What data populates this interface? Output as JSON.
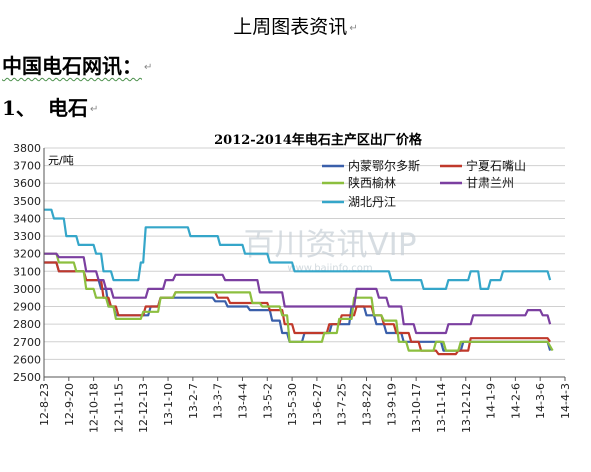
{
  "document": {
    "title": "上周图表资讯",
    "heading": "中国电石网讯：",
    "section_number": "1、",
    "section_title": "电石",
    "paragraph_mark": "↵"
  },
  "chart_data": {
    "type": "line",
    "title": "2012-2014年电石主产区出厂价格",
    "ylabel": "元/吨",
    "xlabel": "",
    "ylim": [
      2500,
      3800
    ],
    "yticks": [
      2500,
      2600,
      2700,
      2800,
      2900,
      3000,
      3100,
      3200,
      3300,
      3400,
      3500,
      3600,
      3700,
      3800
    ],
    "categories": [
      "12-8-23",
      "12-9-20",
      "12-10-18",
      "12-11-15",
      "12-12-13",
      "13-1-10",
      "13-2-7",
      "13-3-7",
      "13-4-4",
      "13-5-2",
      "13-5-30",
      "13-6-27",
      "13-7-25",
      "13-8-22",
      "13-9-19",
      "13-10-17",
      "13-11-14",
      "13-12-12",
      "14-1-9",
      "14-2-6",
      "14-3-6",
      "14-4-3"
    ],
    "grid": true,
    "legend": "top-right",
    "watermark": "百川资讯VIP",
    "watermark_url": "www.baiinfo.com",
    "series": [
      {
        "name": "内蒙鄂尔多斯",
        "color": "#3a5faa",
        "points": [
          [
            0,
            3150
          ],
          [
            0.5,
            3150
          ],
          [
            0.6,
            3100
          ],
          [
            1.6,
            3100
          ],
          [
            1.7,
            3050
          ],
          [
            2.2,
            3050
          ],
          [
            2.3,
            3000
          ],
          [
            2.5,
            3000
          ],
          [
            2.6,
            2900
          ],
          [
            2.8,
            2900
          ],
          [
            2.9,
            2850
          ],
          [
            4.2,
            2850
          ],
          [
            4.3,
            2900
          ],
          [
            4.6,
            2900
          ],
          [
            4.7,
            2950
          ],
          [
            6.8,
            2950
          ],
          [
            6.9,
            2930
          ],
          [
            7.3,
            2930
          ],
          [
            7.4,
            2900
          ],
          [
            8.2,
            2900
          ],
          [
            8.3,
            2880
          ],
          [
            9.1,
            2880
          ],
          [
            9.2,
            2820
          ],
          [
            9.5,
            2820
          ],
          [
            9.6,
            2750
          ],
          [
            9.8,
            2750
          ],
          [
            9.9,
            2700
          ],
          [
            10.4,
            2700
          ],
          [
            10.5,
            2750
          ],
          [
            11.5,
            2750
          ],
          [
            11.6,
            2800
          ],
          [
            12.3,
            2800
          ],
          [
            12.4,
            2900
          ],
          [
            12.9,
            2900
          ],
          [
            13.0,
            2850
          ],
          [
            13.3,
            2850
          ],
          [
            13.4,
            2800
          ],
          [
            13.7,
            2800
          ],
          [
            13.8,
            2750
          ],
          [
            14.4,
            2750
          ],
          [
            14.5,
            2700
          ],
          [
            16.0,
            2700
          ],
          [
            16.1,
            2650
          ],
          [
            16.8,
            2650
          ],
          [
            16.9,
            2700
          ],
          [
            20.3,
            2700
          ],
          [
            20.4,
            2650
          ]
        ]
      },
      {
        "name": "宁夏石嘴山",
        "color": "#c0392b",
        "points": [
          [
            0,
            3150
          ],
          [
            0.5,
            3150
          ],
          [
            0.6,
            3100
          ],
          [
            1.6,
            3100
          ],
          [
            1.7,
            3050
          ],
          [
            2.3,
            3050
          ],
          [
            2.4,
            2950
          ],
          [
            2.6,
            2950
          ],
          [
            2.7,
            2900
          ],
          [
            2.9,
            2900
          ],
          [
            3.0,
            2850
          ],
          [
            4.0,
            2850
          ],
          [
            4.1,
            2900
          ],
          [
            4.6,
            2900
          ],
          [
            4.7,
            2950
          ],
          [
            5.2,
            2950
          ],
          [
            5.3,
            2980
          ],
          [
            6.9,
            2980
          ],
          [
            7.0,
            2950
          ],
          [
            7.4,
            2950
          ],
          [
            7.5,
            2920
          ],
          [
            9.0,
            2920
          ],
          [
            9.1,
            2880
          ],
          [
            9.6,
            2880
          ],
          [
            9.7,
            2800
          ],
          [
            10.0,
            2800
          ],
          [
            10.1,
            2750
          ],
          [
            11.4,
            2750
          ],
          [
            11.5,
            2800
          ],
          [
            11.9,
            2800
          ],
          [
            12.0,
            2850
          ],
          [
            12.5,
            2850
          ],
          [
            12.6,
            2900
          ],
          [
            13.2,
            2900
          ],
          [
            13.3,
            2850
          ],
          [
            13.6,
            2850
          ],
          [
            13.7,
            2800
          ],
          [
            14.1,
            2800
          ],
          [
            14.2,
            2750
          ],
          [
            14.7,
            2750
          ],
          [
            14.8,
            2700
          ],
          [
            15.1,
            2700
          ],
          [
            15.2,
            2650
          ],
          [
            15.8,
            2650
          ],
          [
            15.9,
            2630
          ],
          [
            16.6,
            2630
          ],
          [
            16.7,
            2650
          ],
          [
            17.1,
            2650
          ],
          [
            17.2,
            2720
          ],
          [
            20.3,
            2720
          ],
          [
            20.4,
            2700
          ]
        ]
      },
      {
        "name": "陕西榆林",
        "color": "#8cbf3f",
        "points": [
          [
            0,
            3200
          ],
          [
            0.5,
            3200
          ],
          [
            0.6,
            3150
          ],
          [
            1.2,
            3150
          ],
          [
            1.3,
            3100
          ],
          [
            1.6,
            3100
          ],
          [
            1.7,
            3000
          ],
          [
            2.0,
            3000
          ],
          [
            2.1,
            2950
          ],
          [
            2.5,
            2950
          ],
          [
            2.6,
            2900
          ],
          [
            2.8,
            2900
          ],
          [
            2.9,
            2830
          ],
          [
            3.9,
            2830
          ],
          [
            4.0,
            2870
          ],
          [
            4.6,
            2870
          ],
          [
            4.7,
            2950
          ],
          [
            5.2,
            2950
          ],
          [
            5.3,
            2980
          ],
          [
            8.3,
            2980
          ],
          [
            8.4,
            2920
          ],
          [
            8.7,
            2920
          ],
          [
            8.8,
            2900
          ],
          [
            9.5,
            2900
          ],
          [
            9.6,
            2850
          ],
          [
            9.8,
            2850
          ],
          [
            9.9,
            2700
          ],
          [
            11.2,
            2700
          ],
          [
            11.3,
            2750
          ],
          [
            11.8,
            2750
          ],
          [
            11.9,
            2830
          ],
          [
            12.4,
            2830
          ],
          [
            12.5,
            2950
          ],
          [
            13.2,
            2950
          ],
          [
            13.3,
            2850
          ],
          [
            13.6,
            2850
          ],
          [
            13.7,
            2820
          ],
          [
            14.2,
            2820
          ],
          [
            14.3,
            2700
          ],
          [
            14.6,
            2700
          ],
          [
            14.7,
            2650
          ],
          [
            15.7,
            2650
          ],
          [
            15.8,
            2700
          ],
          [
            16.1,
            2700
          ],
          [
            16.2,
            2650
          ],
          [
            16.7,
            2650
          ],
          [
            16.8,
            2700
          ],
          [
            20.3,
            2700
          ],
          [
            20.5,
            2650
          ]
        ]
      },
      {
        "name": "甘肃兰州",
        "color": "#7b3fa0",
        "points": [
          [
            0,
            3200
          ],
          [
            0.5,
            3200
          ],
          [
            0.6,
            3180
          ],
          [
            1.6,
            3180
          ],
          [
            1.7,
            3100
          ],
          [
            2.1,
            3100
          ],
          [
            2.2,
            3050
          ],
          [
            2.4,
            3050
          ],
          [
            2.5,
            3000
          ],
          [
            2.7,
            3000
          ],
          [
            2.8,
            2950
          ],
          [
            4.1,
            2950
          ],
          [
            4.2,
            3000
          ],
          [
            4.8,
            3000
          ],
          [
            4.9,
            3050
          ],
          [
            5.2,
            3050
          ],
          [
            5.3,
            3080
          ],
          [
            7.2,
            3080
          ],
          [
            7.3,
            3050
          ],
          [
            8.6,
            3050
          ],
          [
            8.7,
            2980
          ],
          [
            9.6,
            2980
          ],
          [
            9.7,
            2900
          ],
          [
            12.5,
            2900
          ],
          [
            12.6,
            3000
          ],
          [
            13.4,
            3000
          ],
          [
            13.5,
            2950
          ],
          [
            13.8,
            2950
          ],
          [
            13.9,
            2900
          ],
          [
            14.4,
            2900
          ],
          [
            14.5,
            2800
          ],
          [
            14.9,
            2800
          ],
          [
            15.0,
            2750
          ],
          [
            16.2,
            2750
          ],
          [
            16.3,
            2800
          ],
          [
            17.2,
            2800
          ],
          [
            17.3,
            2850
          ],
          [
            19.4,
            2850
          ],
          [
            19.5,
            2880
          ],
          [
            20.0,
            2880
          ],
          [
            20.1,
            2850
          ],
          [
            20.3,
            2850
          ],
          [
            20.4,
            2800
          ]
        ]
      },
      {
        "name": "湖北丹江",
        "color": "#35a6c9",
        "points": [
          [
            0,
            3450
          ],
          [
            0.3,
            3450
          ],
          [
            0.4,
            3400
          ],
          [
            0.8,
            3400
          ],
          [
            0.9,
            3300
          ],
          [
            1.3,
            3300
          ],
          [
            1.4,
            3250
          ],
          [
            2.0,
            3250
          ],
          [
            2.1,
            3200
          ],
          [
            2.3,
            3200
          ],
          [
            2.4,
            3100
          ],
          [
            2.7,
            3100
          ],
          [
            2.8,
            3050
          ],
          [
            3.8,
            3050
          ],
          [
            3.9,
            3150
          ],
          [
            4.0,
            3150
          ],
          [
            4.1,
            3350
          ],
          [
            5.8,
            3350
          ],
          [
            5.9,
            3300
          ],
          [
            7.0,
            3300
          ],
          [
            7.1,
            3250
          ],
          [
            8.0,
            3250
          ],
          [
            8.1,
            3200
          ],
          [
            9.0,
            3200
          ],
          [
            9.1,
            3150
          ],
          [
            10.0,
            3150
          ],
          [
            10.1,
            3100
          ],
          [
            13.9,
            3100
          ],
          [
            14.0,
            3050
          ],
          [
            15.2,
            3050
          ],
          [
            15.3,
            3000
          ],
          [
            16.2,
            3000
          ],
          [
            16.3,
            3050
          ],
          [
            17.1,
            3050
          ],
          [
            17.2,
            3100
          ],
          [
            17.5,
            3100
          ],
          [
            17.6,
            3000
          ],
          [
            17.9,
            3000
          ],
          [
            18.0,
            3050
          ],
          [
            18.4,
            3050
          ],
          [
            18.5,
            3100
          ],
          [
            20.3,
            3100
          ],
          [
            20.4,
            3050
          ]
        ]
      }
    ]
  }
}
